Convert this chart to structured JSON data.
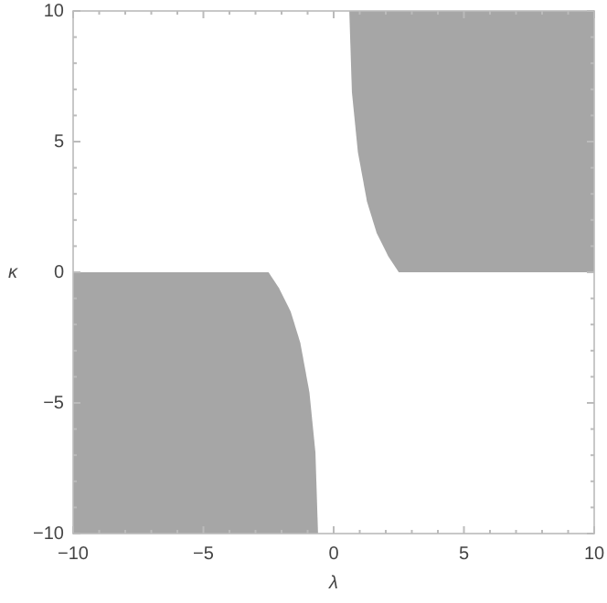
{
  "chart_data": {
    "type": "area",
    "xlabel": "λ",
    "ylabel": "κ",
    "xlim": [
      -10,
      10
    ],
    "ylim": [
      -10,
      10
    ],
    "xticks": [
      -10,
      {
        "value": -9,
        "label": null
      },
      {
        "value": -8,
        "label": null
      },
      {
        "value": -7,
        "label": null
      },
      {
        "value": -6,
        "label": null
      },
      -5,
      {
        "value": -4,
        "label": null
      },
      {
        "value": -3,
        "label": null
      },
      {
        "value": -2,
        "label": null
      },
      {
        "value": -1,
        "label": null
      },
      0,
      {
        "value": 1,
        "label": null
      },
      {
        "value": 2,
        "label": null
      },
      {
        "value": 3,
        "label": null
      },
      {
        "value": 4,
        "label": null
      },
      5,
      {
        "value": 6,
        "label": null
      },
      {
        "value": 7,
        "label": null
      },
      {
        "value": 8,
        "label": null
      },
      {
        "value": 9,
        "label": null
      },
      10
    ],
    "yticks": [
      -10,
      {
        "value": -9,
        "label": null
      },
      {
        "value": -8,
        "label": null
      },
      {
        "value": -7,
        "label": null
      },
      {
        "value": -6,
        "label": null
      },
      -5,
      {
        "value": -4,
        "label": null
      },
      {
        "value": -3,
        "label": null
      },
      {
        "value": -2,
        "label": null
      },
      {
        "value": -1,
        "label": null
      },
      0,
      {
        "value": 1,
        "label": null
      },
      {
        "value": 2,
        "label": null
      },
      {
        "value": 3,
        "label": null
      },
      {
        "value": 4,
        "label": null
      },
      5,
      {
        "value": 6,
        "label": null
      },
      {
        "value": 7,
        "label": null
      },
      {
        "value": 8,
        "label": null
      },
      {
        "value": 9,
        "label": null
      },
      10
    ],
    "grid": false,
    "series": [
      {
        "color": "#a6a6a6",
        "x": [
          0.6,
          0.7,
          0.93,
          1.28,
          1.65,
          2.1,
          2.5,
          10,
          10
        ],
        "values": [
          10,
          6.9,
          4.6,
          2.7,
          1.5,
          0.6,
          0,
          0,
          10
        ]
      },
      {
        "color": "#a6a6a6",
        "x": [
          -10,
          -10,
          -2.5,
          -2.1,
          -1.65,
          -1.28,
          -0.93,
          -0.7,
          -0.6
        ],
        "values": [
          -10,
          0,
          0,
          -0.6,
          -1.5,
          -2.7,
          -4.6,
          -6.9,
          -10
        ]
      }
    ]
  }
}
